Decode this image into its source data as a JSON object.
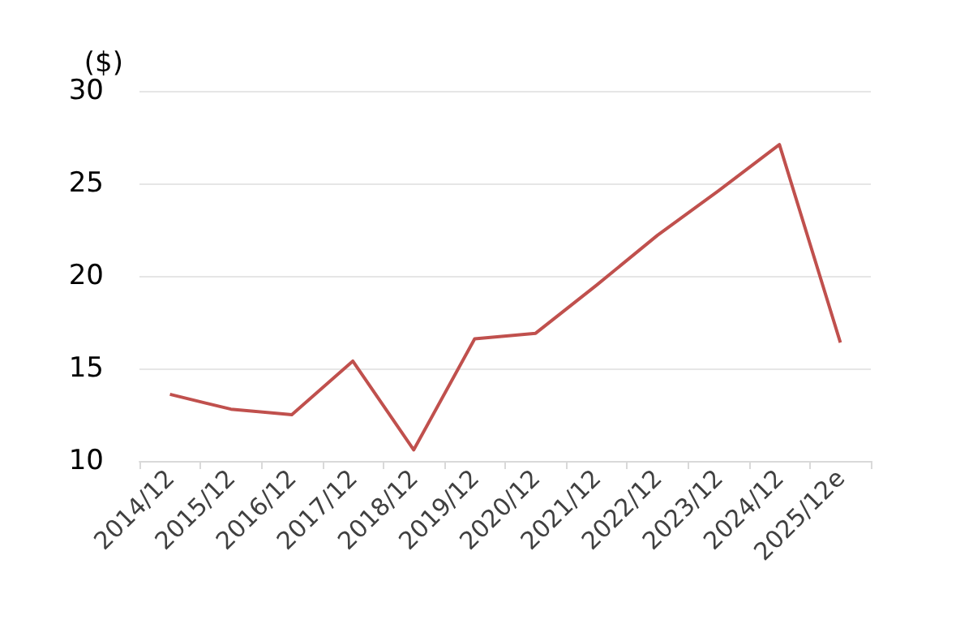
{
  "chart_data": {
    "type": "line",
    "ylabel": "($)",
    "categories": [
      "2014/12",
      "2015/12",
      "2016/12",
      "2017/12",
      "2018/12",
      "2019/12",
      "2020/12",
      "2021/12",
      "2022/12",
      "2023/12",
      "2024/12",
      "2025/12e"
    ],
    "series": [
      {
        "color": "#c0504d",
        "values": [
          13.6,
          12.8,
          12.5,
          15.4,
          10.6,
          16.6,
          16.9,
          19.5,
          22.2,
          24.6,
          27.1,
          16.4
        ]
      }
    ],
    "ylim": [
      10,
      30
    ],
    "yticks": [
      10,
      15,
      20,
      25,
      30
    ],
    "grid": "y",
    "marker": "none"
  }
}
